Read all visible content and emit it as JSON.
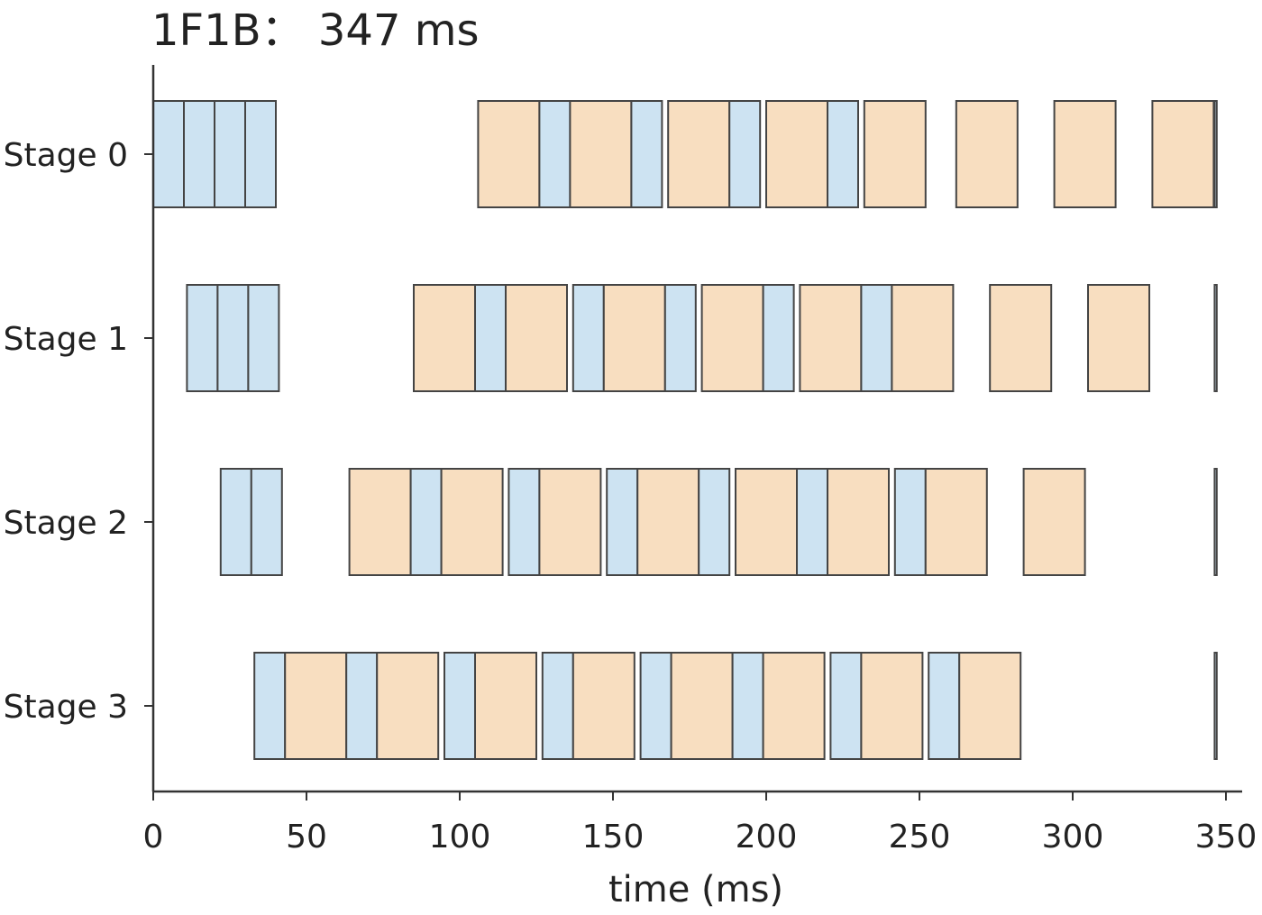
{
  "chart_data": {
    "type": "gantt",
    "title": "1F1B：  347 ms",
    "xlabel": "time (ms)",
    "ylabel": "",
    "xlim": [
      0,
      355
    ],
    "xticks": [
      0,
      50,
      100,
      150,
      200,
      250,
      300,
      350
    ],
    "xtick_labels": [
      "0",
      "50",
      "100",
      "150",
      "200",
      "250",
      "300",
      "350"
    ],
    "stages": [
      "Stage 0",
      "Stage 1",
      "Stage 2",
      "Stage 3"
    ],
    "legend": "none",
    "grid": false,
    "colors": {
      "forward": "#cde3f2",
      "backward": "#f8dec0",
      "edge": "#444444",
      "axis": "#333333"
    },
    "tasks": [
      {
        "stage": 0,
        "kind": "forward",
        "start": 0,
        "end": 10
      },
      {
        "stage": 0,
        "kind": "forward",
        "start": 10,
        "end": 20
      },
      {
        "stage": 0,
        "kind": "forward",
        "start": 20,
        "end": 30
      },
      {
        "stage": 0,
        "kind": "forward",
        "start": 30,
        "end": 40
      },
      {
        "stage": 0,
        "kind": "backward",
        "start": 106,
        "end": 126
      },
      {
        "stage": 0,
        "kind": "forward",
        "start": 126,
        "end": 136
      },
      {
        "stage": 0,
        "kind": "backward",
        "start": 136,
        "end": 156
      },
      {
        "stage": 0,
        "kind": "forward",
        "start": 156,
        "end": 166
      },
      {
        "stage": 0,
        "kind": "backward",
        "start": 168,
        "end": 188
      },
      {
        "stage": 0,
        "kind": "forward",
        "start": 188,
        "end": 198
      },
      {
        "stage": 0,
        "kind": "backward",
        "start": 200,
        "end": 220
      },
      {
        "stage": 0,
        "kind": "forward",
        "start": 220,
        "end": 230
      },
      {
        "stage": 0,
        "kind": "backward",
        "start": 232,
        "end": 252
      },
      {
        "stage": 0,
        "kind": "backward",
        "start": 262,
        "end": 282
      },
      {
        "stage": 0,
        "kind": "backward",
        "start": 294,
        "end": 314
      },
      {
        "stage": 0,
        "kind": "backward",
        "start": 326,
        "end": 346
      },
      {
        "stage": 0,
        "kind": "forward",
        "start": 346.3,
        "end": 347
      },
      {
        "stage": 1,
        "kind": "forward",
        "start": 11,
        "end": 21
      },
      {
        "stage": 1,
        "kind": "forward",
        "start": 21,
        "end": 31
      },
      {
        "stage": 1,
        "kind": "forward",
        "start": 31,
        "end": 41
      },
      {
        "stage": 1,
        "kind": "backward",
        "start": 85,
        "end": 105
      },
      {
        "stage": 1,
        "kind": "forward",
        "start": 105,
        "end": 115
      },
      {
        "stage": 1,
        "kind": "backward",
        "start": 115,
        "end": 135
      },
      {
        "stage": 1,
        "kind": "forward",
        "start": 137,
        "end": 147
      },
      {
        "stage": 1,
        "kind": "backward",
        "start": 147,
        "end": 167
      },
      {
        "stage": 1,
        "kind": "forward",
        "start": 167,
        "end": 177
      },
      {
        "stage": 1,
        "kind": "backward",
        "start": 179,
        "end": 199
      },
      {
        "stage": 1,
        "kind": "forward",
        "start": 199,
        "end": 209
      },
      {
        "stage": 1,
        "kind": "backward",
        "start": 211,
        "end": 231
      },
      {
        "stage": 1,
        "kind": "forward",
        "start": 231,
        "end": 241
      },
      {
        "stage": 1,
        "kind": "backward",
        "start": 241,
        "end": 261
      },
      {
        "stage": 1,
        "kind": "backward",
        "start": 273,
        "end": 293
      },
      {
        "stage": 1,
        "kind": "backward",
        "start": 305,
        "end": 325
      },
      {
        "stage": 1,
        "kind": "forward",
        "start": 346.3,
        "end": 347
      },
      {
        "stage": 2,
        "kind": "forward",
        "start": 22,
        "end": 32
      },
      {
        "stage": 2,
        "kind": "forward",
        "start": 32,
        "end": 42
      },
      {
        "stage": 2,
        "kind": "backward",
        "start": 64,
        "end": 84
      },
      {
        "stage": 2,
        "kind": "forward",
        "start": 84,
        "end": 94
      },
      {
        "stage": 2,
        "kind": "backward",
        "start": 94,
        "end": 114
      },
      {
        "stage": 2,
        "kind": "forward",
        "start": 116,
        "end": 126
      },
      {
        "stage": 2,
        "kind": "backward",
        "start": 126,
        "end": 146
      },
      {
        "stage": 2,
        "kind": "forward",
        "start": 148,
        "end": 158
      },
      {
        "stage": 2,
        "kind": "backward",
        "start": 158,
        "end": 178
      },
      {
        "stage": 2,
        "kind": "forward",
        "start": 178,
        "end": 188
      },
      {
        "stage": 2,
        "kind": "backward",
        "start": 190,
        "end": 210
      },
      {
        "stage": 2,
        "kind": "forward",
        "start": 210,
        "end": 220
      },
      {
        "stage": 2,
        "kind": "backward",
        "start": 220,
        "end": 240
      },
      {
        "stage": 2,
        "kind": "forward",
        "start": 242,
        "end": 252
      },
      {
        "stage": 2,
        "kind": "backward",
        "start": 252,
        "end": 272
      },
      {
        "stage": 2,
        "kind": "backward",
        "start": 284,
        "end": 304
      },
      {
        "stage": 2,
        "kind": "forward",
        "start": 346.3,
        "end": 347
      },
      {
        "stage": 3,
        "kind": "forward",
        "start": 33,
        "end": 43
      },
      {
        "stage": 3,
        "kind": "backward",
        "start": 43,
        "end": 63
      },
      {
        "stage": 3,
        "kind": "forward",
        "start": 63,
        "end": 73
      },
      {
        "stage": 3,
        "kind": "backward",
        "start": 73,
        "end": 93
      },
      {
        "stage": 3,
        "kind": "forward",
        "start": 95,
        "end": 105
      },
      {
        "stage": 3,
        "kind": "backward",
        "start": 105,
        "end": 125
      },
      {
        "stage": 3,
        "kind": "forward",
        "start": 127,
        "end": 137
      },
      {
        "stage": 3,
        "kind": "backward",
        "start": 137,
        "end": 157
      },
      {
        "stage": 3,
        "kind": "forward",
        "start": 159,
        "end": 169
      },
      {
        "stage": 3,
        "kind": "backward",
        "start": 169,
        "end": 189
      },
      {
        "stage": 3,
        "kind": "forward",
        "start": 189,
        "end": 199
      },
      {
        "stage": 3,
        "kind": "backward",
        "start": 199,
        "end": 219
      },
      {
        "stage": 3,
        "kind": "forward",
        "start": 221,
        "end": 231
      },
      {
        "stage": 3,
        "kind": "backward",
        "start": 231,
        "end": 251
      },
      {
        "stage": 3,
        "kind": "forward",
        "start": 253,
        "end": 263
      },
      {
        "stage": 3,
        "kind": "backward",
        "start": 263,
        "end": 283
      },
      {
        "stage": 3,
        "kind": "forward",
        "start": 346.3,
        "end": 347
      }
    ]
  }
}
